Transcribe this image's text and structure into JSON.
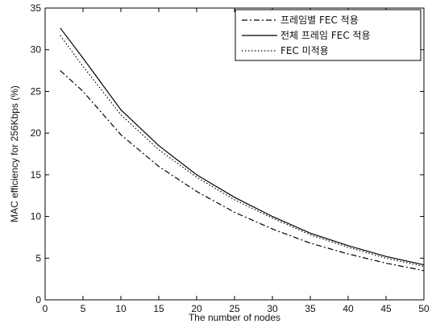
{
  "chart_data": {
    "type": "line",
    "title": "",
    "xlabel": "The number of nodes",
    "ylabel": "MAC efficiency for 256Kbps (%)",
    "xlim": [
      0,
      50
    ],
    "ylim": [
      0,
      35
    ],
    "xticks": [
      0,
      5,
      10,
      15,
      20,
      25,
      30,
      35,
      40,
      45,
      50
    ],
    "yticks": [
      0,
      5,
      10,
      15,
      20,
      25,
      30,
      35
    ],
    "grid": false,
    "legend_position": "top-right",
    "x": [
      2,
      5,
      10,
      15,
      20,
      25,
      30,
      35,
      40,
      45,
      50
    ],
    "series": [
      {
        "name": "프레임별 FEC 적용",
        "style": "dashdot",
        "values": [
          27.5,
          25.0,
          19.8,
          16.0,
          13.0,
          10.5,
          8.5,
          6.8,
          5.5,
          4.4,
          3.5
        ]
      },
      {
        "name": "전체 프레임 FEC 적용",
        "style": "solid",
        "values": [
          32.6,
          29.0,
          22.8,
          18.5,
          15.0,
          12.3,
          10.0,
          8.0,
          6.5,
          5.2,
          4.2
        ]
      },
      {
        "name": "FEC 미적용",
        "style": "dotted",
        "values": [
          31.7,
          28.0,
          22.2,
          18.0,
          14.7,
          12.0,
          9.8,
          7.8,
          6.3,
          5.0,
          4.0
        ]
      }
    ]
  }
}
